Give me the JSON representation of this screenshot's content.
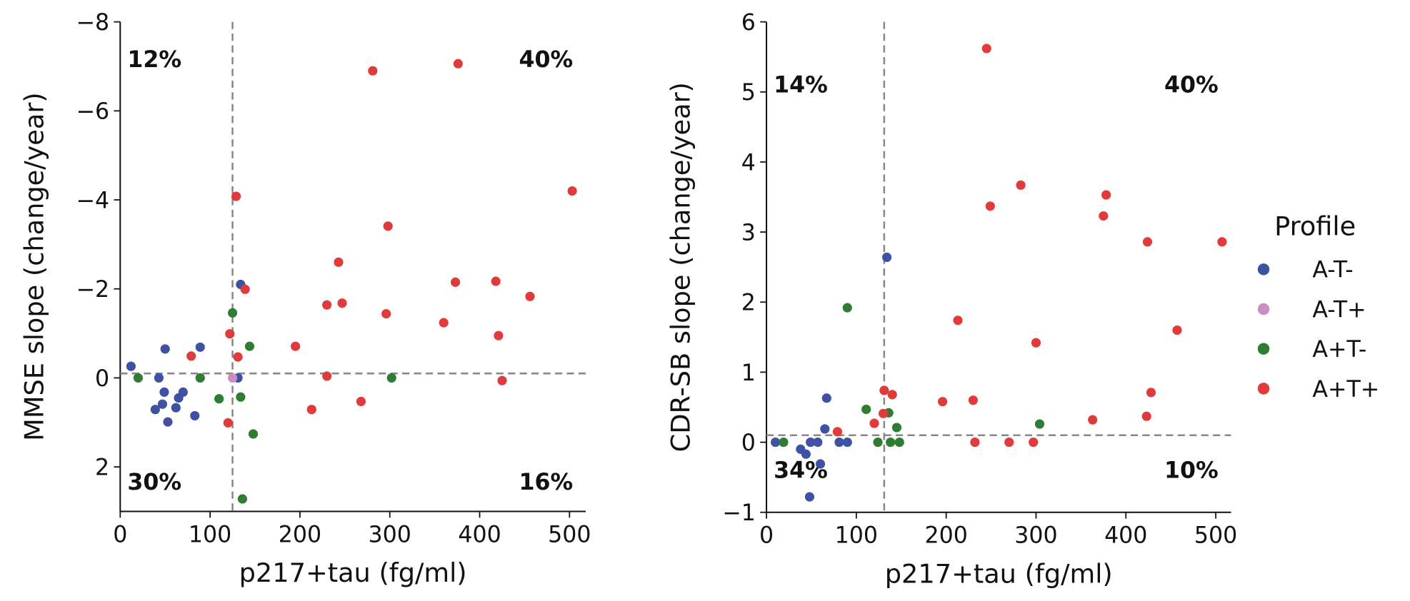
{
  "chart_data": [
    {
      "type": "scatter",
      "xlabel": "p217+tau (fg/ml)",
      "ylabel": "MMSE slope (change/year)",
      "xlim": [
        0,
        518
      ],
      "ylim": [
        -8,
        3
      ],
      "invert_y": true,
      "xticks": [
        0,
        100,
        200,
        300,
        400,
        500
      ],
      "yticks": [
        {
          "value": -8,
          "label": "−8"
        },
        {
          "value": -6,
          "label": "−6"
        },
        {
          "value": -4,
          "label": "−4"
        },
        {
          "value": -2,
          "label": "−2"
        },
        0,
        2
      ],
      "vline": 125,
      "hline": -0.1,
      "annotations": [
        {
          "text": "12%",
          "corner": "top-left"
        },
        {
          "text": "40%",
          "corner": "top-right"
        },
        {
          "text": "30%",
          "corner": "bottom-left"
        },
        {
          "text": "16%",
          "corner": "bottom-right"
        }
      ],
      "series": [
        {
          "name": "A-T-",
          "color": "#3f51a3",
          "x": [
            12,
            50,
            89,
            43,
            131,
            134,
            49,
            39,
            47,
            53,
            62,
            65,
            70,
            83
          ],
          "values": [
            -0.26,
            -0.65,
            -0.69,
            0,
            0,
            -2.1,
            0.32,
            0.71,
            0.59,
            0.99,
            0.67,
            0.45,
            0.32,
            0.85
          ]
        },
        {
          "name": "A-T+",
          "color": "#c98fc2",
          "x": [
            125
          ],
          "values": [
            0
          ]
        },
        {
          "name": "A+T-",
          "color": "#2e7d32",
          "x": [
            20,
            89,
            125,
            144,
            110,
            134,
            148,
            136,
            302
          ],
          "values": [
            0,
            0,
            -1.46,
            -0.71,
            0.47,
            0.43,
            1.26,
            2.72,
            0
          ]
        },
        {
          "name": "A+T+",
          "color": "#e03a3a",
          "x": [
            79,
            122,
            129,
            139,
            131,
            120,
            195,
            213,
            230,
            230,
            243,
            247,
            268,
            281,
            296,
            298,
            376,
            360,
            373,
            418,
            421,
            425,
            456,
            503
          ],
          "values": [
            -0.49,
            -0.99,
            -4.08,
            -1.99,
            -0.47,
            1.01,
            -0.71,
            0.71,
            -1.64,
            -0.04,
            -2.6,
            -1.68,
            0.53,
            -6.9,
            -1.44,
            -3.41,
            -7.06,
            -1.24,
            -2.15,
            -2.17,
            -0.95,
            0.06,
            -1.83,
            -4.2
          ]
        }
      ]
    },
    {
      "type": "scatter",
      "xlabel": "p217+tau (fg/ml)",
      "ylabel": "CDR-SB slope (change/year)",
      "xlim": [
        0,
        517
      ],
      "ylim": [
        -1,
        6
      ],
      "invert_y": false,
      "xticks": [
        0,
        100,
        200,
        300,
        400,
        500
      ],
      "yticks": [
        {
          "value": -1,
          "label": "−1"
        },
        0,
        1,
        2,
        3,
        4,
        5,
        6
      ],
      "vline": 131,
      "hline": 0.1,
      "annotations": [
        {
          "text": "14%",
          "corner": "top-left"
        },
        {
          "text": "40%",
          "corner": "top-right"
        },
        {
          "text": "34%",
          "corner": "bottom-left"
        },
        {
          "text": "10%",
          "corner": "bottom-right"
        }
      ],
      "legend_title": "Profile",
      "series": [
        {
          "name": "A-T-",
          "color": "#3f51a3",
          "x": [
            10,
            67,
            65,
            38,
            44,
            49,
            57,
            81,
            90,
            60,
            48,
            134
          ],
          "values": [
            0,
            0.63,
            0.19,
            -0.1,
            -0.17,
            0,
            0,
            0,
            0,
            -0.31,
            -0.78,
            2.64
          ]
        },
        {
          "name": "A+T-",
          "color": "#2e7d32",
          "x": [
            19,
            90,
            111,
            124,
            136,
            138,
            145,
            148,
            304
          ],
          "values": [
            0,
            1.92,
            0.47,
            0,
            0.42,
            0,
            0.21,
            0,
            0.26
          ]
        },
        {
          "name": "A+T+",
          "color": "#e03a3a",
          "x": [
            79,
            120,
            131,
            130,
            140,
            196,
            213,
            230,
            232,
            245,
            249,
            270,
            283,
            297,
            300,
            363,
            375,
            378,
            423,
            424,
            428,
            457,
            507
          ],
          "values": [
            0.15,
            0.27,
            0.74,
            0.41,
            0.68,
            0.58,
            1.74,
            0.6,
            0,
            5.62,
            3.37,
            0,
            3.67,
            0,
            1.42,
            0.32,
            3.23,
            3.53,
            0.37,
            2.86,
            0.71,
            1.6,
            2.86
          ]
        }
      ]
    }
  ]
}
